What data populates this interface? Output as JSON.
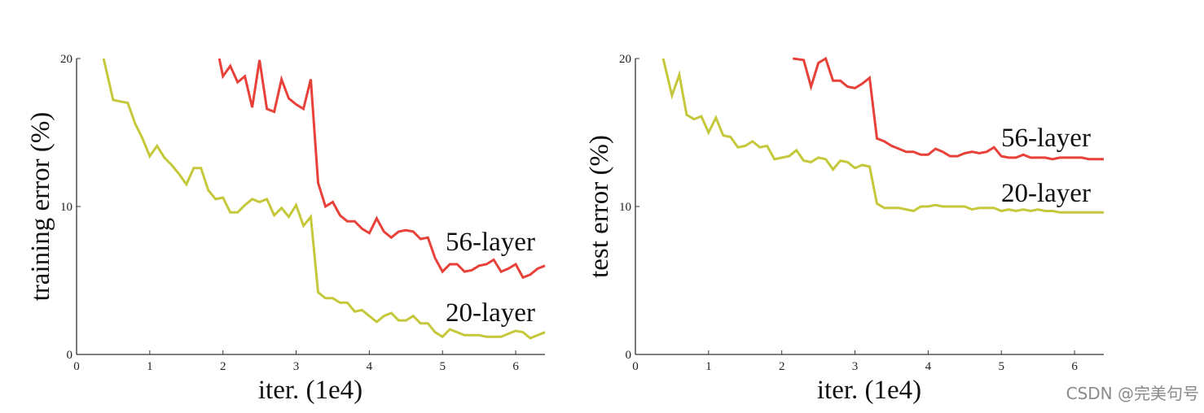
{
  "chart_data": [
    {
      "type": "line",
      "xlabel": "iter. (1e4)",
      "ylabel": "training error (%)",
      "xlim": [
        0,
        6.4
      ],
      "ylim": [
        0,
        20
      ],
      "xticks": [
        "0",
        "1",
        "2",
        "3",
        "4",
        "5",
        "6"
      ],
      "yticks": [
        "0",
        "10",
        "20"
      ],
      "grid": false,
      "series": [
        {
          "name": "56-layer",
          "color": "#e8413a",
          "x": [
            1.95,
            2.0,
            2.1,
            2.2,
            2.3,
            2.4,
            2.5,
            2.6,
            2.7,
            2.8,
            2.9,
            3.0,
            3.1,
            3.2,
            3.3,
            3.4,
            3.5,
            3.6,
            3.7,
            3.8,
            3.9,
            4.0,
            4.1,
            4.2,
            4.3,
            4.4,
            4.5,
            4.6,
            4.7,
            4.8,
            4.9,
            5.0,
            5.1,
            5.2,
            5.3,
            5.4,
            5.5,
            5.6,
            5.7,
            5.8,
            5.9,
            6.0,
            6.1,
            6.2,
            6.3,
            6.4
          ],
          "y": [
            20.0,
            18.8,
            19.5,
            18.4,
            18.8,
            16.7,
            19.9,
            16.6,
            16.4,
            18.6,
            17.3,
            16.9,
            16.6,
            18.6,
            11.6,
            10.0,
            10.3,
            9.4,
            9.0,
            9.0,
            8.5,
            8.2,
            9.2,
            8.3,
            7.9,
            8.3,
            8.4,
            8.3,
            7.8,
            7.9,
            6.5,
            5.6,
            6.1,
            6.1,
            5.6,
            5.7,
            6.0,
            6.1,
            6.4,
            5.6,
            5.8,
            6.1,
            5.2,
            5.4,
            5.8,
            6.0
          ]
        },
        {
          "name": "20-layer",
          "color": "#c5c83a",
          "x": [
            0.37,
            0.5,
            0.6,
            0.7,
            0.8,
            0.9,
            1.0,
            1.1,
            1.2,
            1.3,
            1.4,
            1.5,
            1.6,
            1.7,
            1.8,
            1.9,
            2.0,
            2.1,
            2.2,
            2.3,
            2.4,
            2.5,
            2.6,
            2.7,
            2.8,
            2.9,
            3.0,
            3.1,
            3.2,
            3.3,
            3.4,
            3.5,
            3.6,
            3.7,
            3.8,
            3.9,
            4.0,
            4.1,
            4.2,
            4.3,
            4.4,
            4.5,
            4.6,
            4.7,
            4.8,
            4.9,
            5.0,
            5.1,
            5.2,
            5.3,
            5.4,
            5.5,
            5.6,
            5.7,
            5.8,
            5.9,
            6.0,
            6.1,
            6.2,
            6.3,
            6.4
          ],
          "y": [
            20.0,
            17.2,
            17.1,
            17.0,
            15.6,
            14.6,
            13.4,
            14.1,
            13.3,
            12.8,
            12.2,
            11.5,
            12.6,
            12.6,
            11.1,
            10.5,
            10.6,
            9.6,
            9.6,
            10.1,
            10.5,
            10.3,
            10.5,
            9.4,
            9.9,
            9.3,
            10.1,
            8.7,
            9.3,
            4.2,
            3.8,
            3.8,
            3.5,
            3.5,
            2.9,
            3.0,
            2.6,
            2.2,
            2.6,
            2.8,
            2.3,
            2.3,
            2.6,
            2.1,
            2.1,
            1.5,
            1.2,
            1.7,
            1.5,
            1.3,
            1.3,
            1.3,
            1.2,
            1.2,
            1.2,
            1.4,
            1.6,
            1.5,
            1.1,
            1.3,
            1.5
          ]
        }
      ]
    },
    {
      "type": "line",
      "xlabel": "iter. (1e4)",
      "ylabel": "test error (%)",
      "xlim": [
        0,
        6.4
      ],
      "ylim": [
        0,
        20
      ],
      "xticks": [
        "0",
        "1",
        "2",
        "3",
        "4",
        "5",
        "6"
      ],
      "yticks": [
        "0",
        "10",
        "20"
      ],
      "grid": false,
      "series": [
        {
          "name": "56-layer",
          "color": "#e8413a",
          "x": [
            2.15,
            2.3,
            2.4,
            2.5,
            2.6,
            2.7,
            2.8,
            2.9,
            3.0,
            3.1,
            3.2,
            3.3,
            3.4,
            3.5,
            3.6,
            3.7,
            3.8,
            3.9,
            4.0,
            4.1,
            4.2,
            4.3,
            4.4,
            4.5,
            4.6,
            4.7,
            4.8,
            4.9,
            5.0,
            5.1,
            5.2,
            5.3,
            5.4,
            5.5,
            5.6,
            5.7,
            5.8,
            5.9,
            6.0,
            6.1,
            6.2,
            6.3,
            6.4
          ],
          "y": [
            20.0,
            19.9,
            18.1,
            19.7,
            20.0,
            18.5,
            18.5,
            18.1,
            18.0,
            18.3,
            18.7,
            14.6,
            14.4,
            14.1,
            13.9,
            13.7,
            13.7,
            13.5,
            13.5,
            13.9,
            13.7,
            13.4,
            13.4,
            13.6,
            13.7,
            13.6,
            13.7,
            14.0,
            13.4,
            13.3,
            13.3,
            13.5,
            13.3,
            13.3,
            13.3,
            13.2,
            13.3,
            13.3,
            13.3,
            13.3,
            13.2,
            13.2,
            13.2
          ]
        },
        {
          "name": "20-layer",
          "color": "#c5c83a",
          "x": [
            0.38,
            0.5,
            0.6,
            0.7,
            0.8,
            0.9,
            1.0,
            1.1,
            1.2,
            1.3,
            1.4,
            1.5,
            1.6,
            1.7,
            1.8,
            1.9,
            2.0,
            2.1,
            2.2,
            2.3,
            2.4,
            2.5,
            2.6,
            2.7,
            2.8,
            2.9,
            3.0,
            3.1,
            3.2,
            3.3,
            3.4,
            3.5,
            3.6,
            3.7,
            3.8,
            3.9,
            4.0,
            4.1,
            4.2,
            4.3,
            4.4,
            4.5,
            4.6,
            4.7,
            4.8,
            4.9,
            5.0,
            5.1,
            5.2,
            5.3,
            5.4,
            5.5,
            5.6,
            5.7,
            5.8,
            5.9,
            6.0,
            6.1,
            6.2,
            6.3,
            6.4
          ],
          "y": [
            20.0,
            17.5,
            18.9,
            16.2,
            15.9,
            16.1,
            15.0,
            16.0,
            14.8,
            14.7,
            14.0,
            14.1,
            14.4,
            14.0,
            14.1,
            13.2,
            13.3,
            13.4,
            13.8,
            13.1,
            13.0,
            13.3,
            13.2,
            12.5,
            13.1,
            13.0,
            12.6,
            12.8,
            12.7,
            10.2,
            9.9,
            9.9,
            9.9,
            9.8,
            9.7,
            10.0,
            10.0,
            10.1,
            10.0,
            10.0,
            10.0,
            10.0,
            9.8,
            9.9,
            9.9,
            9.9,
            9.7,
            9.8,
            9.7,
            9.8,
            9.7,
            9.8,
            9.7,
            9.7,
            9.6,
            9.6,
            9.6,
            9.6,
            9.6,
            9.6,
            9.6
          ]
        }
      ]
    }
  ],
  "watermark": "CSDN @完美句号"
}
